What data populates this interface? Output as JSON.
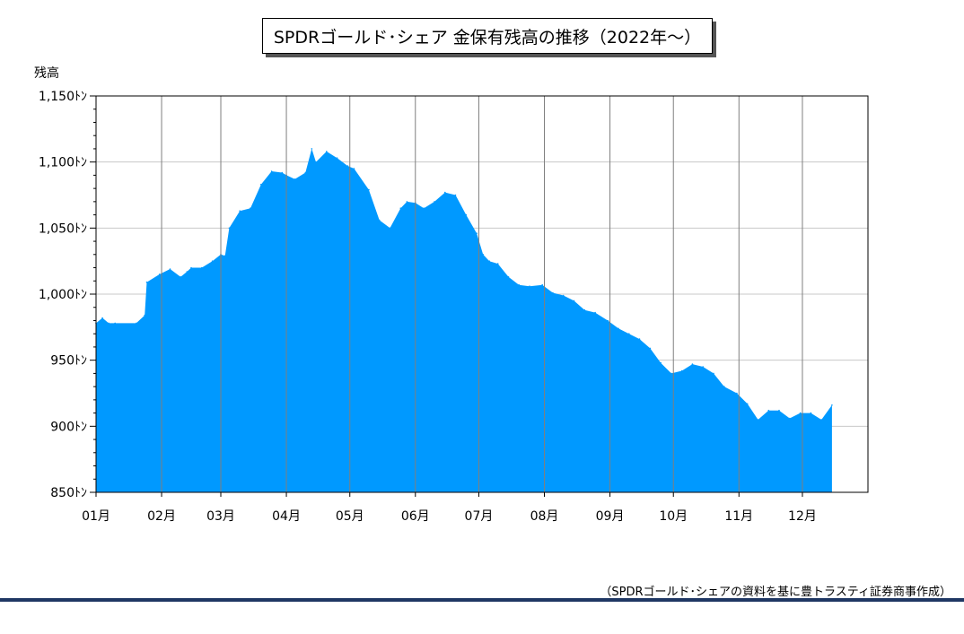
{
  "chart_data": {
    "type": "area",
    "title": "SPDRゴールド･シェア 金保有残高の推移（2022年～）",
    "ylabel": "残高",
    "xlabel": "",
    "ylim": [
      850,
      1150
    ],
    "y_ticks": [
      850,
      900,
      950,
      1000,
      1050,
      1100,
      1150
    ],
    "y_tick_labels": [
      "850ﾄﾝ",
      "900ﾄﾝ",
      "950ﾄﾝ",
      "1,000ﾄﾝ",
      "1,050ﾄﾝ",
      "1,100ﾄﾝ",
      "1,150ﾄﾝ"
    ],
    "x_tick_labels": [
      "01月",
      "02月",
      "03月",
      "04月",
      "05月",
      "06月",
      "07月",
      "08月",
      "09月",
      "10月",
      "11月",
      "12月"
    ],
    "grid": true,
    "color": "#0099ff",
    "x": [
      "2022-01-01",
      "2022-01-04",
      "2022-01-07",
      "2022-01-10",
      "2022-01-20",
      "2022-01-24",
      "2022-01-25",
      "2022-01-31",
      "2022-02-05",
      "2022-02-10",
      "2022-02-13",
      "2022-02-15",
      "2022-02-20",
      "2022-02-25",
      "2022-03-01",
      "2022-03-03",
      "2022-03-05",
      "2022-03-10",
      "2022-03-15",
      "2022-03-20",
      "2022-03-25",
      "2022-03-30",
      "2022-04-01",
      "2022-04-05",
      "2022-04-10",
      "2022-04-13",
      "2022-04-15",
      "2022-04-20",
      "2022-04-25",
      "2022-04-30",
      "2022-05-03",
      "2022-05-10",
      "2022-05-15",
      "2022-05-20",
      "2022-05-25",
      "2022-05-28",
      "2022-06-01",
      "2022-06-05",
      "2022-06-10",
      "2022-06-15",
      "2022-06-20",
      "2022-06-25",
      "2022-06-30",
      "2022-07-03",
      "2022-07-06",
      "2022-07-10",
      "2022-07-15",
      "2022-07-20",
      "2022-07-25",
      "2022-07-31",
      "2022-08-05",
      "2022-08-10",
      "2022-08-15",
      "2022-08-20",
      "2022-08-25",
      "2022-08-31",
      "2022-09-05",
      "2022-09-10",
      "2022-09-15",
      "2022-09-20",
      "2022-09-25",
      "2022-09-30",
      "2022-10-05",
      "2022-10-10",
      "2022-10-15",
      "2022-10-20",
      "2022-10-25",
      "2022-10-31",
      "2022-11-05",
      "2022-11-10",
      "2022-11-15",
      "2022-11-20",
      "2022-11-25",
      "2022-11-30",
      "2022-12-05",
      "2022-12-10",
      "2022-12-15"
    ],
    "values": [
      978,
      982,
      978,
      978,
      978,
      984,
      1009,
      1015,
      1019,
      1013,
      1017,
      1020,
      1020,
      1025,
      1030,
      1029,
      1050,
      1063,
      1065,
      1083,
      1093,
      1092,
      1090,
      1087,
      1092,
      1110,
      1100,
      1108,
      1103,
      1097,
      1095,
      1079,
      1056,
      1050,
      1065,
      1070,
      1069,
      1065,
      1070,
      1077,
      1075,
      1060,
      1046,
      1030,
      1025,
      1023,
      1013,
      1007,
      1006,
      1007,
      1001,
      999,
      995,
      988,
      986,
      980,
      974,
      970,
      966,
      959,
      948,
      940,
      942,
      947,
      945,
      940,
      930,
      925,
      917,
      905,
      912,
      912,
      906,
      910,
      910,
      905,
      916
    ]
  },
  "source_note": "（SPDRゴールド･シェアの資料を基に豊トラスティ証券商事作成）",
  "colors": {
    "area": "#0099ff",
    "grid": "#c8c8c8",
    "month_line": "#7f7f7f",
    "rule": "#1f3763"
  }
}
